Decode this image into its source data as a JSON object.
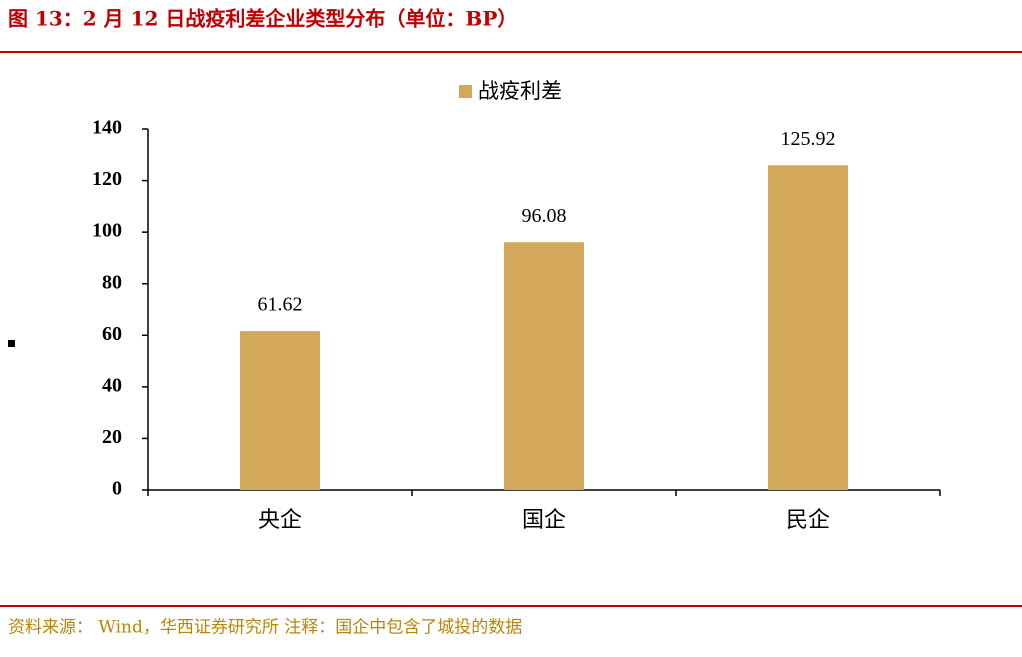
{
  "chart_data": {
    "type": "bar",
    "title": "图 13：2 月 12 日战疫利差企业类型分布（单位：BP）",
    "categories": [
      "央企",
      "国企",
      "民企"
    ],
    "series": [
      {
        "name": "战疫利差",
        "color": "#d4a85a",
        "values": [
          61.62,
          96.08,
          125.92
        ]
      }
    ],
    "ylim": [
      0,
      140
    ],
    "yticks": [
      0,
      20,
      40,
      60,
      80,
      100,
      120,
      140
    ],
    "legend": "top",
    "source": "资料来源： Wind，华西证券研究所 注释：国企中包含了城投的数据"
  }
}
